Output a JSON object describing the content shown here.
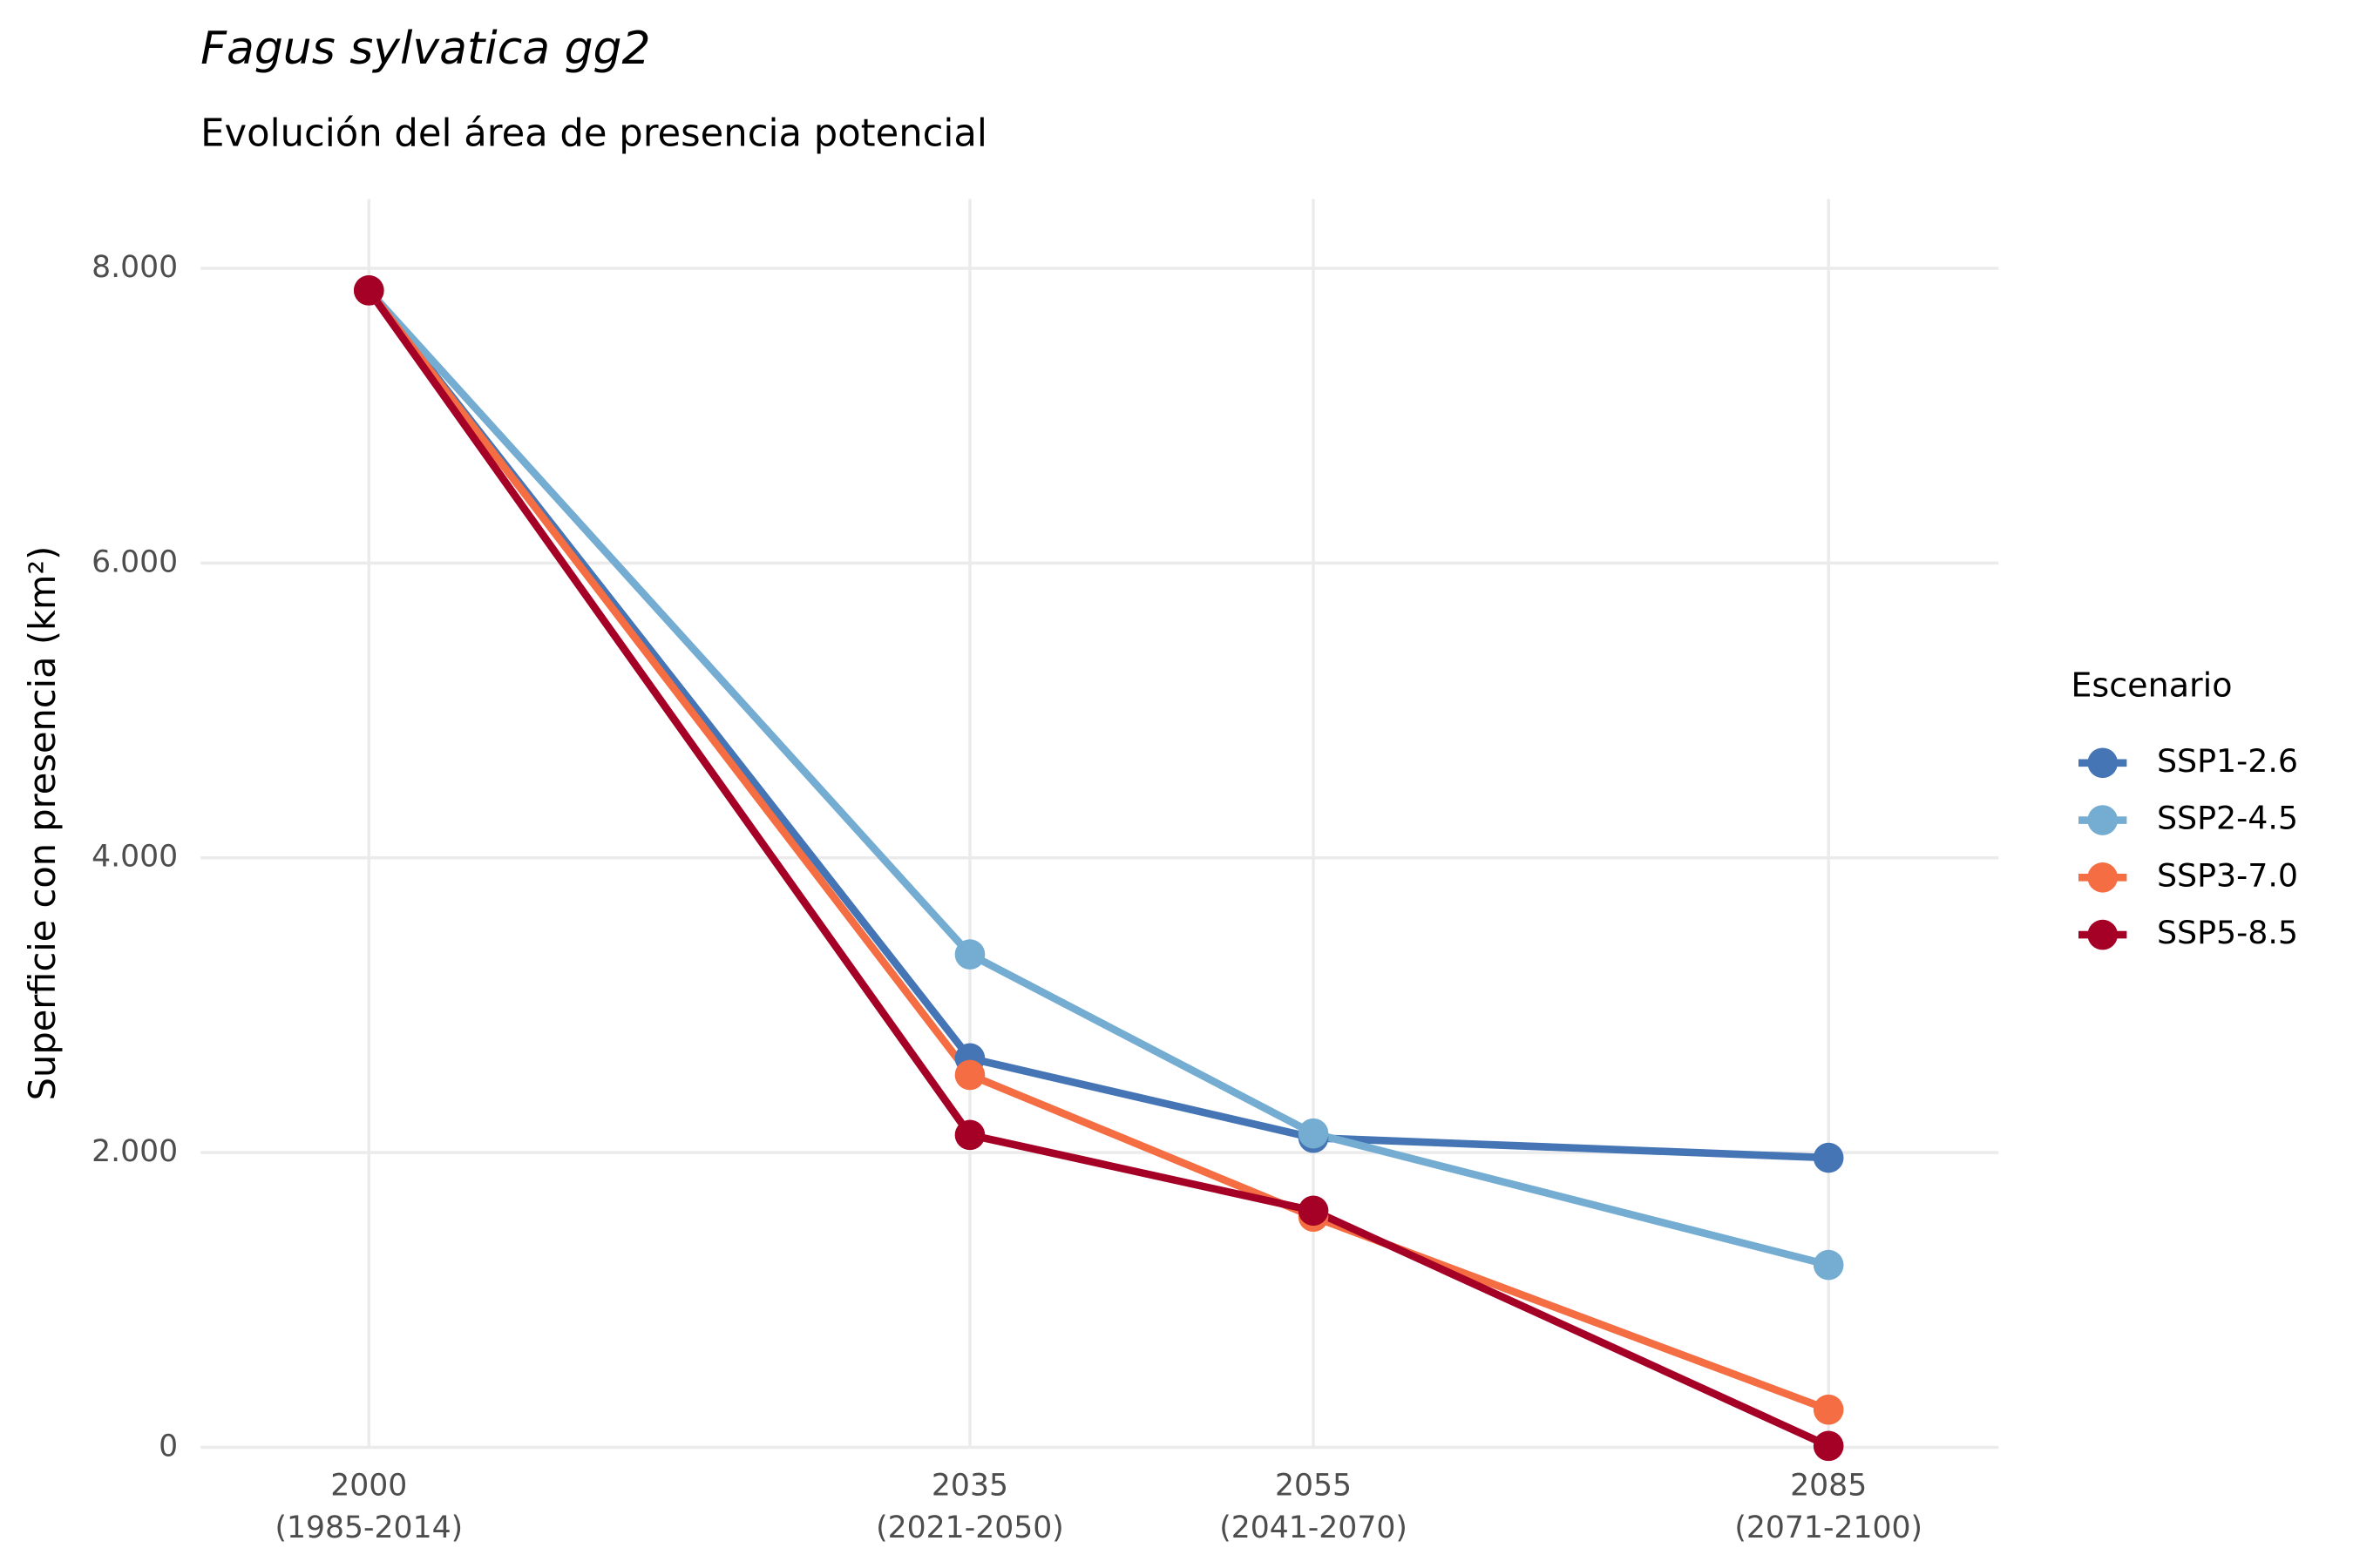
{
  "chart_data": {
    "type": "line",
    "title": "Fagus sylvatica gg2",
    "subtitle": "Evolución del área de presencia potencial",
    "y_label": "Superficie con presencia (km²)",
    "legend_title": "Escenario",
    "legend_position": "right",
    "grid": true,
    "x": [
      2000,
      2035,
      2055,
      2085
    ],
    "xlim": [
      1990.2,
      2094.9
    ],
    "xticks": [
      {
        "value": 2000,
        "label": "2000",
        "period": "(1985-2014)"
      },
      {
        "value": 2035,
        "label": "2035",
        "period": "(2021-2050)"
      },
      {
        "value": 2055,
        "label": "2055",
        "period": "(2041-2070)"
      },
      {
        "value": 2085,
        "label": "2085",
        "period": "(2071-2100)"
      }
    ],
    "ylim": [
      0,
      8470
    ],
    "yticks": [
      0,
      {
        "value": 2000,
        "label": "2.000"
      },
      {
        "value": 4000,
        "label": "4.000"
      },
      {
        "value": 6000,
        "label": "6.000"
      },
      {
        "value": 8000,
        "label": "8.000"
      }
    ],
    "series": [
      {
        "name": "SSP1-2.6",
        "color": "#4575b4",
        "values": [
          7850,
          2640,
          2100,
          1965
        ]
      },
      {
        "name": "SSP2-4.5",
        "color": "#74add1",
        "values": [
          7850,
          3345,
          2130,
          1238
        ]
      },
      {
        "name": "SSP3-7.0",
        "color": "#f46d43",
        "values": [
          7850,
          2527,
          1565,
          256
        ]
      },
      {
        "name": "SSP5-8.5",
        "color": "#a50026",
        "values": [
          7850,
          2120,
          1606,
          10
        ]
      }
    ]
  }
}
